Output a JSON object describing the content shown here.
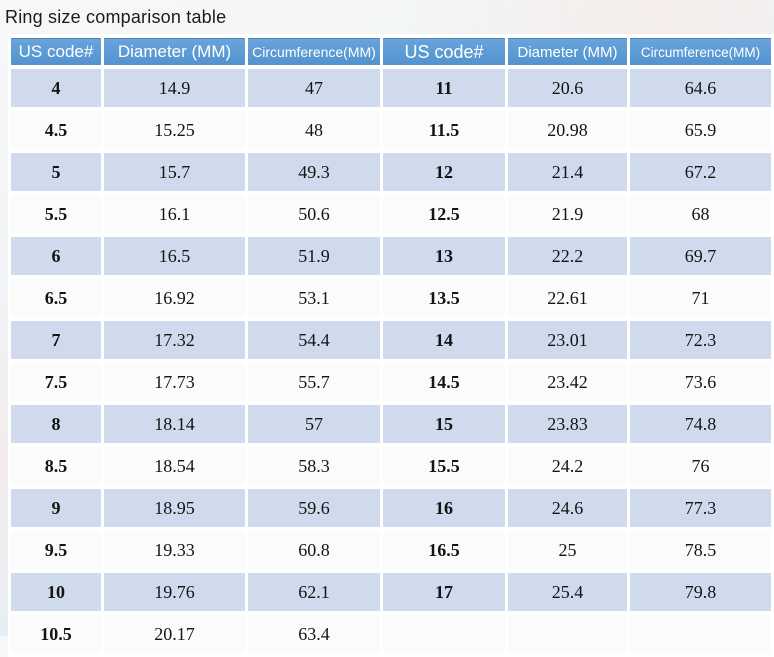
{
  "title": "Ring size comparison table",
  "chart_data": {
    "type": "table",
    "title": "Ring size comparison table",
    "columns": [
      "US code#",
      "Diameter (MM)",
      "Circumference(MM)",
      "US code#",
      "Diameter (MM)",
      "Circumference(MM)"
    ],
    "rows": [
      [
        "4",
        "14.9",
        "47",
        "11",
        "20.6",
        "64.6"
      ],
      [
        "4.5",
        "15.25",
        "48",
        "11.5",
        "20.98",
        "65.9"
      ],
      [
        "5",
        "15.7",
        "49.3",
        "12",
        "21.4",
        "67.2"
      ],
      [
        "5.5",
        "16.1",
        "50.6",
        "12.5",
        "21.9",
        "68"
      ],
      [
        "6",
        "16.5",
        "51.9",
        "13",
        "22.2",
        "69.7"
      ],
      [
        "6.5",
        "16.92",
        "53.1",
        "13.5",
        "22.61",
        "71"
      ],
      [
        "7",
        "17.32",
        "54.4",
        "14",
        "23.01",
        "72.3"
      ],
      [
        "7.5",
        "17.73",
        "55.7",
        "14.5",
        "23.42",
        "73.6"
      ],
      [
        "8",
        "18.14",
        "57",
        "15",
        "23.83",
        "74.8"
      ],
      [
        "8.5",
        "18.54",
        "58.3",
        "15.5",
        "24.2",
        "76"
      ],
      [
        "9",
        "18.95",
        "59.6",
        "16",
        "24.6",
        "77.3"
      ],
      [
        "9.5",
        "19.33",
        "60.8",
        "16.5",
        "25",
        "78.5"
      ],
      [
        "10",
        "19.76",
        "62.1",
        "17",
        "25.4",
        "79.8"
      ],
      [
        "10.5",
        "20.17",
        "63.4",
        "",
        "",
        ""
      ]
    ],
    "layout_hints": {
      "striped": "alternating rows, first row shaded blue",
      "us_code_columns_bold": true,
      "right_half_last_row_empty": true
    }
  },
  "colors": {
    "header_bg": "#5b9bd5",
    "header_text": "#ffffff",
    "row_blue": "#cfdaec",
    "row_white": "#fbfbf9",
    "gap_color": "#ffffff",
    "body_text": "#141414",
    "title_text": "#1c1c1c"
  }
}
